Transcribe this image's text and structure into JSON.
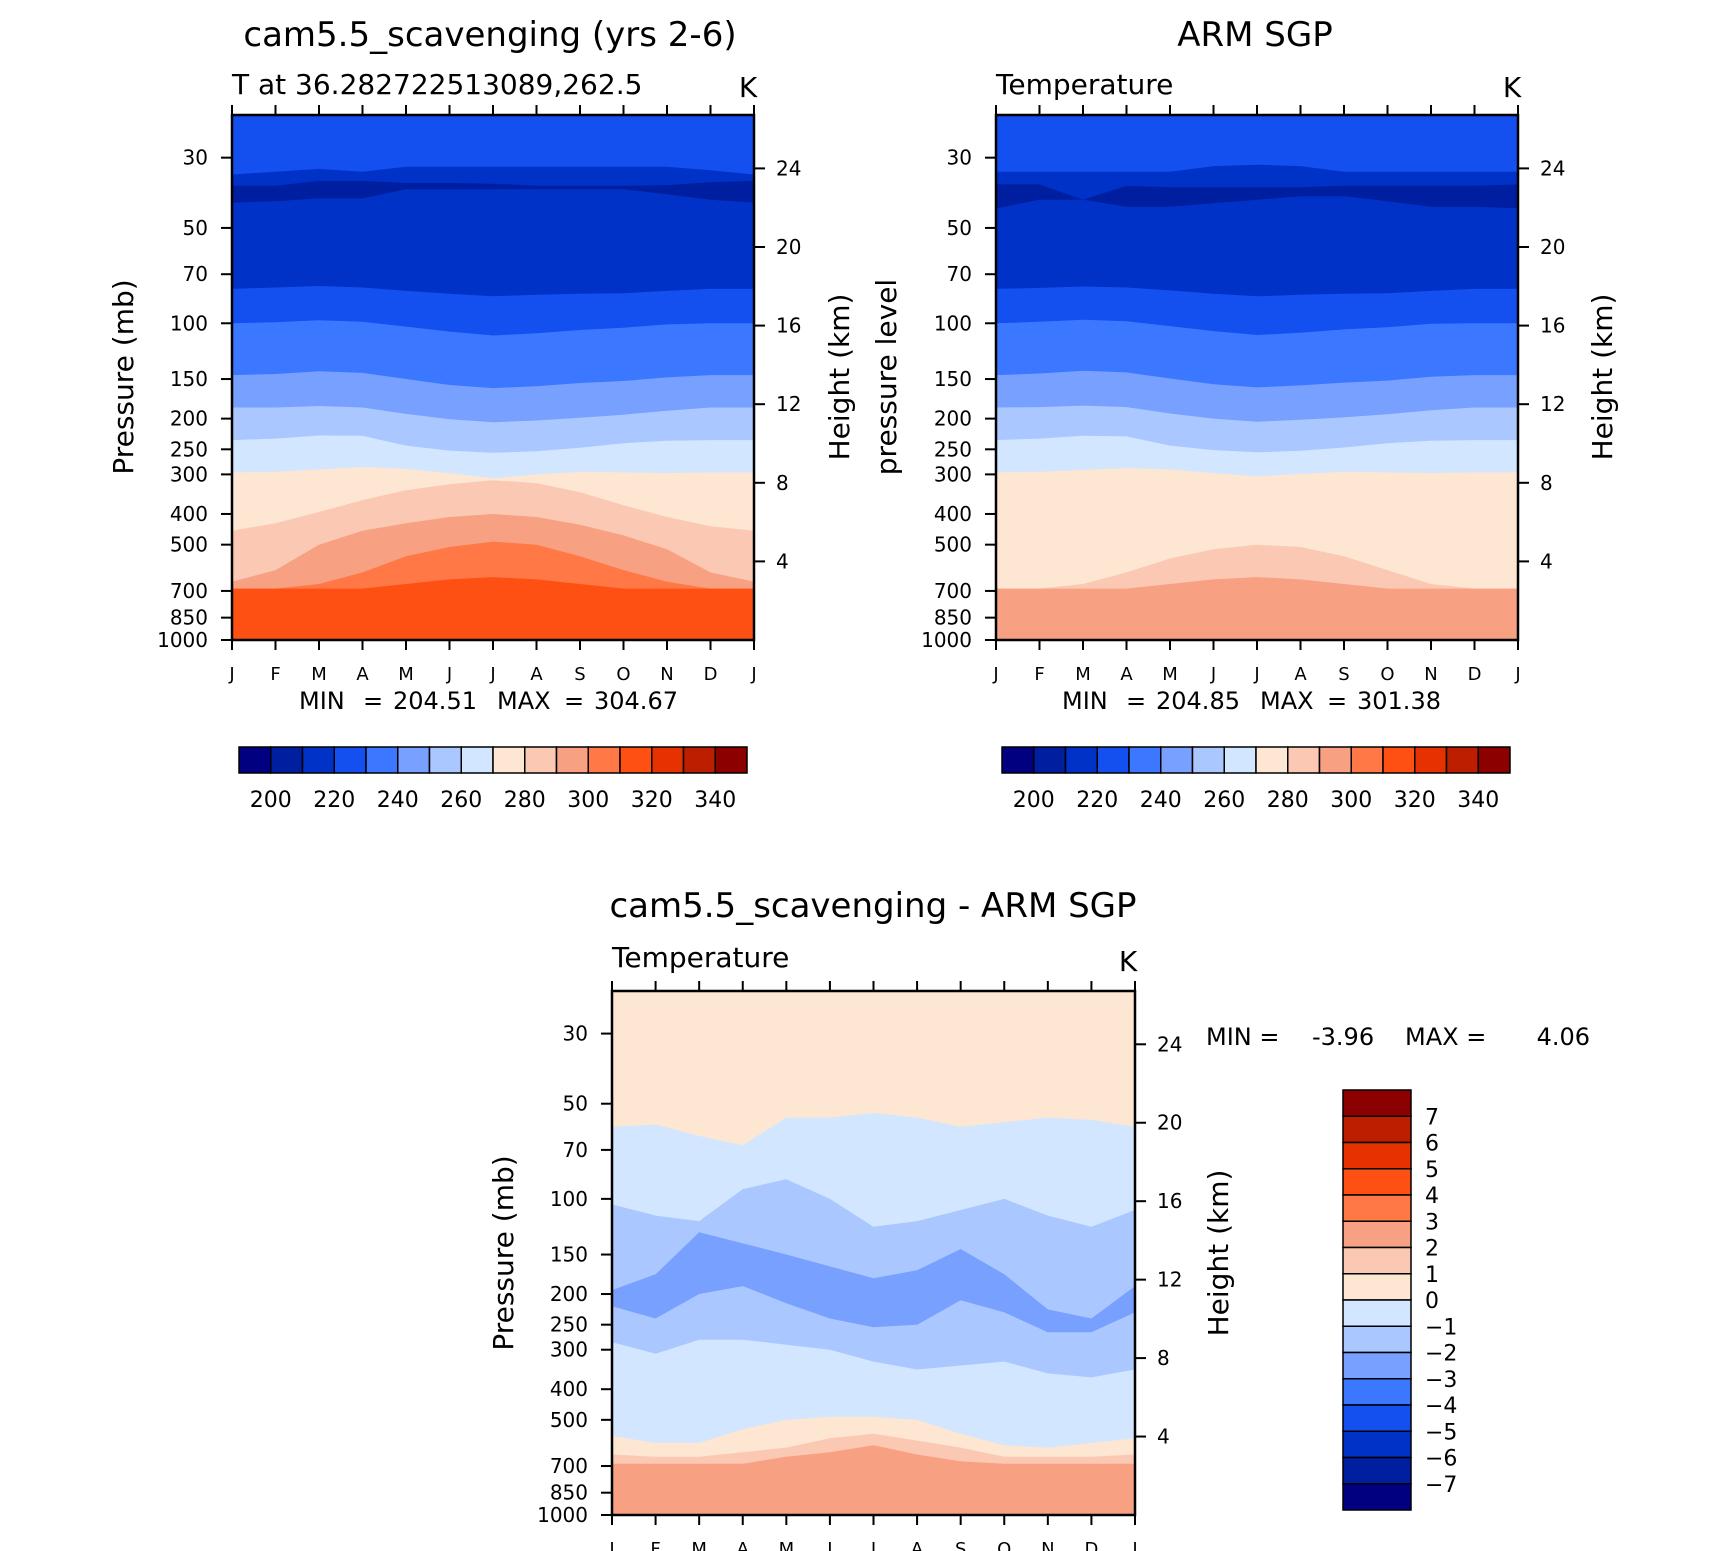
{
  "chart_data": [
    {
      "id": "model",
      "type": "heatmap",
      "title": "cam5.5_scavenging (yrs 2-6)",
      "subtitle_left": "T at 36.282722513089,262.5",
      "units": "K",
      "ylabel": "Pressure (mb)",
      "ylabel_right": "Height (km)",
      "x_ticks": [
        "J",
        "F",
        "M",
        "A",
        "M",
        "J",
        "J",
        "A",
        "S",
        "O",
        "N",
        "D",
        "J"
      ],
      "y_ticks": [
        "30",
        "50",
        "70",
        "100",
        "150",
        "200",
        "250",
        "300",
        "400",
        "500",
        "700",
        "850",
        "1000"
      ],
      "y_ticks_right": [
        "24",
        "20",
        "16",
        "12",
        "8",
        "4"
      ],
      "min_label": "MIN",
      "min": "204.51",
      "max_label": "MAX",
      "max": "304.67",
      "levels_color": [
        "#000080",
        "#001ea0",
        "#0032c8",
        "#1450f0",
        "#3c78ff",
        "#78a0ff",
        "#aac8ff",
        "#d2e6ff",
        "#fde6d2",
        "#fbc8b4",
        "#f8a082",
        "#ff7846",
        "#ff5014",
        "#e63200",
        "#be1e00",
        "#8c0000"
      ],
      "colorbar_labels": [
        "200",
        "220",
        "240",
        "260",
        "280",
        "300",
        "320",
        "340"
      ],
      "bands": [
        {
          "level": 2,
          "top": [
            0.24,
            0.2,
            0.16,
            0.2,
            0.13,
            0.13,
            0.13,
            0.13,
            0.13,
            0.13,
            0.13,
            0.18,
            0.24
          ]
        },
        {
          "level": 1,
          "top": [
            0.4,
            0.4,
            0.33,
            0.33,
            0.36,
            0.36,
            0.37,
            0.4,
            0.4,
            0.4,
            0.39,
            0.35,
            0.33
          ]
        },
        {
          "level": 2,
          "top": [
            0.64,
            0.62,
            0.58,
            0.58,
            0.45,
            0.45,
            0.45,
            0.45,
            0.45,
            0.45,
            0.52,
            0.6,
            0.64
          ]
        },
        {
          "level": 3,
          "top": [
            2.3,
            2.27,
            2.24,
            2.27,
            2.34,
            2.4,
            2.45,
            2.42,
            2.4,
            2.39,
            2.34,
            2.3,
            2.3
          ]
        },
        {
          "level": 4,
          "top": [
            3.0,
            2.98,
            2.94,
            2.97,
            3.06,
            3.15,
            3.22,
            3.18,
            3.12,
            3.08,
            3.02,
            3.0,
            3.0
          ]
        },
        {
          "level": 5,
          "top": [
            3.93,
            3.91,
            3.86,
            3.89,
            4.0,
            4.15,
            4.23,
            4.18,
            4.1,
            4.05,
            3.97,
            3.93,
            3.93
          ]
        },
        {
          "level": 6,
          "top": [
            4.72,
            4.72,
            4.68,
            4.72,
            4.88,
            5.02,
            5.12,
            5.06,
            4.98,
            4.9,
            4.8,
            4.72,
            4.72
          ]
        },
        {
          "level": 7,
          "top": [
            5.7,
            5.65,
            5.55,
            5.56,
            5.88,
            6.05,
            6.14,
            6.08,
            5.95,
            5.8,
            5.72,
            5.7,
            5.7
          ]
        },
        {
          "level": 8,
          "top": [
            6.92,
            6.9,
            6.8,
            6.7,
            6.78,
            6.95,
            7.1,
            7.0,
            6.9,
            6.92,
            6.95,
            6.92,
            6.92
          ]
        },
        {
          "level": 9,
          "top": [
            8.55,
            8.3,
            7.95,
            7.65,
            7.4,
            7.25,
            7.15,
            7.22,
            7.45,
            7.78,
            8.1,
            8.4,
            8.55
          ]
        },
        {
          "level": 10,
          "top": [
            9.8,
            9.55,
            9.0,
            8.55,
            8.3,
            8.1,
            8.0,
            8.1,
            8.35,
            8.7,
            9.1,
            9.6,
            9.8
          ]
        },
        {
          "level": 11,
          "top": [
            9.95,
            9.95,
            9.85,
            9.6,
            9.25,
            9.05,
            8.9,
            9.0,
            9.25,
            9.55,
            9.8,
            9.95,
            9.95
          ]
        },
        {
          "level": 12,
          "top": [
            9.95,
            9.95,
            9.95,
            9.95,
            9.85,
            9.75,
            9.7,
            9.75,
            9.85,
            9.95,
            9.95,
            9.95,
            9.95
          ]
        }
      ]
    },
    {
      "id": "obs",
      "type": "heatmap",
      "title": "ARM SGP",
      "subtitle_left": "Temperature",
      "units": "K",
      "ylabel": "pressure level",
      "ylabel_right": "Height (km)",
      "x_ticks": [
        "J",
        "F",
        "M",
        "A",
        "M",
        "J",
        "J",
        "A",
        "S",
        "O",
        "N",
        "D",
        "J"
      ],
      "y_ticks": [
        "30",
        "50",
        "70",
        "100",
        "150",
        "200",
        "250",
        "300",
        "400",
        "500",
        "700",
        "850",
        "1000"
      ],
      "y_ticks_right": [
        "24",
        "20",
        "16",
        "12",
        "8",
        "4"
      ],
      "min_label": "MIN",
      "min": "204.85",
      "max_label": "MAX",
      "max": "301.38",
      "levels_color": [
        "#000080",
        "#001ea0",
        "#0032c8",
        "#1450f0",
        "#3c78ff",
        "#78a0ff",
        "#aac8ff",
        "#d2e6ff",
        "#fde6d2",
        "#fbc8b4",
        "#f8a082",
        "#ff7846",
        "#ff5014",
        "#e63200",
        "#be1e00",
        "#8c0000"
      ],
      "colorbar_labels": [
        "200",
        "220",
        "240",
        "260",
        "280",
        "300",
        "320",
        "340"
      ],
      "bands": [
        {
          "level": 2,
          "top": [
            0.2,
            0.2,
            0.2,
            0.2,
            0.2,
            0.12,
            0.1,
            0.12,
            0.2,
            0.2,
            0.2,
            0.2,
            0.2
          ]
        },
        {
          "level": 1,
          "top": [
            0.38,
            0.38,
            0.6,
            0.4,
            0.42,
            0.42,
            0.42,
            0.42,
            0.4,
            0.4,
            0.4,
            0.4,
            0.38
          ]
        },
        {
          "level": 2,
          "top": [
            0.72,
            0.6,
            0.6,
            0.7,
            0.7,
            0.65,
            0.6,
            0.55,
            0.55,
            0.62,
            0.7,
            0.7,
            0.72
          ]
        },
        {
          "level": 3,
          "top": [
            2.3,
            2.28,
            2.25,
            2.27,
            2.33,
            2.4,
            2.45,
            2.42,
            2.4,
            2.39,
            2.34,
            2.3,
            2.3
          ]
        },
        {
          "level": 4,
          "top": [
            3.0,
            2.97,
            2.93,
            2.96,
            3.05,
            3.14,
            3.21,
            3.17,
            3.11,
            3.07,
            3.01,
            3.0,
            3.0
          ]
        },
        {
          "level": 5,
          "top": [
            3.93,
            3.9,
            3.85,
            3.88,
            3.99,
            4.13,
            4.21,
            4.16,
            4.09,
            4.04,
            3.96,
            3.93,
            3.93
          ]
        },
        {
          "level": 6,
          "top": [
            4.72,
            4.71,
            4.67,
            4.71,
            4.87,
            5.0,
            5.1,
            5.04,
            4.97,
            4.89,
            4.79,
            4.72,
            4.72
          ]
        },
        {
          "level": 7,
          "top": [
            5.7,
            5.65,
            5.56,
            5.58,
            5.88,
            6.03,
            6.12,
            6.06,
            5.94,
            5.8,
            5.72,
            5.7,
            5.7
          ]
        },
        {
          "level": 8,
          "top": [
            6.92,
            6.9,
            6.82,
            6.75,
            6.8,
            6.95,
            7.05,
            6.98,
            6.9,
            6.92,
            6.95,
            6.92,
            6.92
          ]
        },
        {
          "level": 9,
          "top": [
            9.95,
            9.95,
            9.85,
            9.6,
            9.3,
            9.1,
            9.0,
            9.05,
            9.25,
            9.55,
            9.85,
            9.95,
            9.95
          ]
        },
        {
          "level": 10,
          "top": [
            9.95,
            9.95,
            9.95,
            9.95,
            9.85,
            9.75,
            9.7,
            9.75,
            9.85,
            9.95,
            9.95,
            9.95,
            9.95
          ]
        }
      ]
    },
    {
      "id": "diff",
      "type": "heatmap",
      "title": "cam5.5_scavenging - ARM SGP",
      "subtitle_left": "Temperature",
      "units": "K",
      "ylabel": "Pressure (mb)",
      "ylabel_right": "Height (km)",
      "x_ticks": [
        "J",
        "F",
        "M",
        "A",
        "M",
        "J",
        "J",
        "A",
        "S",
        "O",
        "N",
        "D",
        "J"
      ],
      "y_ticks": [
        "30",
        "50",
        "70",
        "100",
        "150",
        "200",
        "250",
        "300",
        "400",
        "500",
        "700",
        "850",
        "1000"
      ],
      "y_ticks_right": [
        "24",
        "20",
        "16",
        "12",
        "8",
        "4"
      ],
      "min_label": "MIN =",
      "min": "-3.96",
      "max_label": "MAX =",
      "max": "4.06",
      "levels_color": [
        "#000080",
        "#001ea0",
        "#0032c8",
        "#1450f0",
        "#3c78ff",
        "#78a0ff",
        "#aac8ff",
        "#d2e6ff",
        "#fde6d2",
        "#fbc8b4",
        "#f8a082",
        "#ff7846",
        "#ff5014",
        "#e63200",
        "#be1e00",
        "#8c0000"
      ],
      "colorbar_labels": [
        "7",
        "6",
        "5",
        "4",
        "3",
        "2",
        "1",
        "0",
        "−1",
        "−2",
        "−3",
        "−4",
        "−5",
        "−6",
        "−7"
      ],
      "bands": [
        {
          "level": 7,
          "top": [
            1.5,
            1.45,
            1.7,
            1.9,
            1.3,
            1.3,
            1.2,
            1.3,
            1.5,
            1.4,
            1.3,
            1.35,
            1.5
          ]
        },
        {
          "level": 6,
          "top": [
            3.1,
            3.3,
            3.4,
            2.8,
            2.6,
            3.0,
            3.5,
            3.4,
            3.2,
            3.0,
            3.3,
            3.5,
            3.2
          ]
        },
        {
          "level": 5,
          "top": [
            4.9,
            4.5,
            3.6,
            3.8,
            4.0,
            4.3,
            4.6,
            4.4,
            3.9,
            4.5,
            5.5,
            5.8,
            4.8
          ]
        },
        {
          "level": 6,
          "top": [
            5.4,
            5.8,
            5.0,
            4.8,
            5.3,
            5.8,
            6.1,
            6.0,
            5.2,
            5.6,
            6.3,
            6.3,
            5.6
          ]
        },
        {
          "level": 7,
          "top": [
            6.7,
            7.1,
            6.6,
            6.6,
            6.8,
            7.0,
            7.3,
            7.5,
            7.4,
            7.3,
            7.6,
            7.7,
            7.5
          ]
        },
        {
          "level": 8,
          "top": [
            9.35,
            9.5,
            9.5,
            9.2,
            9.0,
            8.9,
            8.9,
            9.0,
            9.3,
            9.55,
            9.6,
            9.5,
            9.4
          ]
        },
        {
          "level": 9,
          "top": [
            9.75,
            9.8,
            9.8,
            9.7,
            9.6,
            9.4,
            9.3,
            9.45,
            9.6,
            9.8,
            9.8,
            9.8,
            9.75
          ]
        },
        {
          "level": 10,
          "top": [
            9.95,
            9.95,
            9.95,
            9.95,
            9.8,
            9.7,
            9.55,
            9.75,
            9.9,
            9.95,
            9.95,
            9.95,
            9.95
          ]
        }
      ]
    }
  ]
}
